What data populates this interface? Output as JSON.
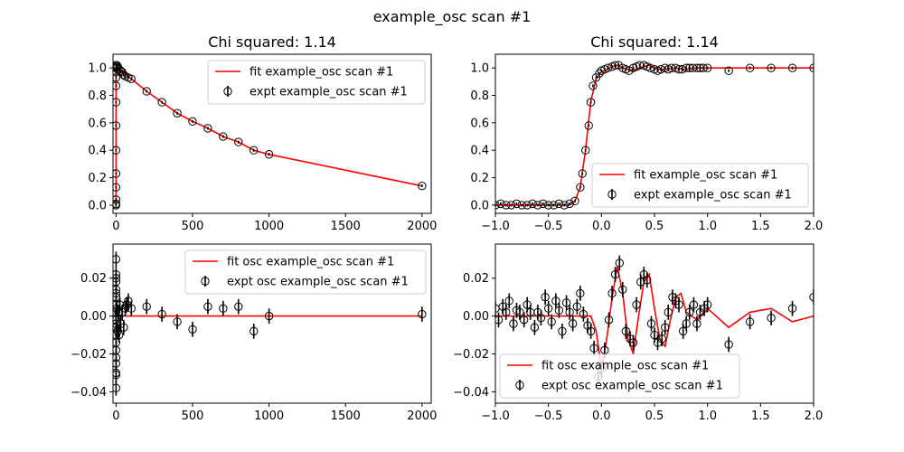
{
  "figure": {
    "title": "example_osc scan #1"
  },
  "colors": {
    "fit": "#ff0000",
    "expt": "#000000",
    "legend_border": "#cccccc",
    "axes": "#000000"
  },
  "chart_data": [
    {
      "type": "scatter",
      "title": "Chi squared:  1.14",
      "xlabel": "",
      "ylabel": "",
      "xlim": [
        -20,
        2060
      ],
      "ylim": [
        -0.06,
        1.1
      ],
      "xticks": [
        0,
        500,
        1000,
        1500,
        2000
      ],
      "xtick_labels": [
        "0",
        "500",
        "1000",
        "1500",
        "2000"
      ],
      "yticks": [
        0.0,
        0.2,
        0.4,
        0.6,
        0.8,
        1.0
      ],
      "ytick_labels": [
        "0.0",
        "0.2",
        "0.4",
        "0.6",
        "0.8",
        "1.0"
      ],
      "grid": false,
      "legend": {
        "placement": "top-right",
        "entries": [
          "fit example_osc scan #1",
          "expt example_osc scan #1"
        ]
      },
      "series": [
        {
          "name": "fit example_osc scan #1",
          "kind": "line",
          "x": [
            -1.0,
            -0.3,
            -0.2,
            -0.15,
            -0.1,
            -0.05,
            0.0,
            0.1,
            0.3,
            0.6,
            1.0,
            1.5,
            2.0,
            5,
            20,
            40,
            60,
            80,
            100,
            200,
            300,
            400,
            500,
            600,
            700,
            800,
            900,
            1000,
            2000
          ],
          "y": [
            0.0,
            0.0,
            0.13,
            0.4,
            0.76,
            0.95,
            1.0,
            1.02,
            1.0,
            1.01,
            1.0,
            1.0,
            1.0,
            1.0,
            0.99,
            0.98,
            0.96,
            0.94,
            0.92,
            0.83,
            0.75,
            0.67,
            0.61,
            0.56,
            0.5,
            0.46,
            0.4,
            0.37,
            0.14
          ]
        },
        {
          "name": "expt example_osc scan #1",
          "kind": "errorbar",
          "x": [
            -1.0,
            -0.6,
            -0.3,
            -0.25,
            -0.2,
            -0.18,
            -0.15,
            -0.12,
            -0.1,
            -0.08,
            -0.05,
            -0.03,
            0.0,
            0.1,
            0.3,
            0.5,
            1.0,
            1.4,
            2.0,
            5,
            10,
            20,
            30,
            40,
            50,
            60,
            80,
            100,
            200,
            300,
            400,
            500,
            600,
            700,
            800,
            900,
            1000,
            2000
          ],
          "y": [
            0.0,
            0.0,
            0.01,
            0.04,
            0.13,
            0.23,
            0.4,
            0.58,
            0.75,
            0.87,
            0.93,
            0.97,
            1.0,
            1.02,
            1.0,
            1.01,
            1.0,
            1.0,
            1.0,
            1.02,
            1.01,
            0.99,
            0.98,
            0.97,
            0.95,
            0.94,
            0.93,
            0.92,
            0.83,
            0.75,
            0.67,
            0.61,
            0.56,
            0.5,
            0.46,
            0.4,
            0.37,
            0.14
          ],
          "yerr": 0.01
        }
      ]
    },
    {
      "type": "scatter",
      "title": "Chi squared:  1.14",
      "xlabel": "",
      "ylabel": "",
      "xlim": [
        -1.0,
        2.0
      ],
      "ylim": [
        -0.06,
        1.1
      ],
      "xticks": [
        -1.0,
        -0.5,
        0.0,
        0.5,
        1.0,
        1.5,
        2.0
      ],
      "xtick_labels": [
        "−1.0",
        "−0.5",
        "0.0",
        "0.5",
        "1.0",
        "1.5",
        "2.0"
      ],
      "yticks": [
        0.0,
        0.2,
        0.4,
        0.6,
        0.8,
        1.0
      ],
      "ytick_labels": [
        "0.0",
        "0.2",
        "0.4",
        "0.6",
        "0.8",
        "1.0"
      ],
      "grid": false,
      "legend": {
        "placement": "bottom-right",
        "entries": [
          "fit example_osc scan #1",
          "expt example_osc scan #1"
        ]
      },
      "series": [
        {
          "name": "fit example_osc scan #1",
          "kind": "line",
          "x": [
            -1.0,
            -0.3,
            -0.25,
            -0.2,
            -0.15,
            -0.1,
            -0.05,
            0.0,
            0.05,
            0.1,
            0.15,
            0.2,
            0.25,
            0.3,
            0.35,
            0.4,
            0.45,
            0.5,
            0.55,
            0.6,
            0.7,
            0.8,
            0.9,
            1.0,
            1.5,
            2.0
          ],
          "y": [
            0.0,
            0.0,
            0.03,
            0.13,
            0.4,
            0.76,
            0.92,
            0.97,
            0.99,
            1.01,
            1.02,
            1.0,
            0.99,
            0.98,
            1.0,
            1.01,
            1.02,
            1.0,
            0.99,
            0.99,
            1.0,
            0.99,
            1.0,
            1.0,
            1.0,
            1.0
          ]
        },
        {
          "name": "expt example_osc scan #1",
          "kind": "errorbar",
          "x": [
            -1.0,
            -0.95,
            -0.9,
            -0.85,
            -0.8,
            -0.75,
            -0.7,
            -0.65,
            -0.6,
            -0.55,
            -0.5,
            -0.45,
            -0.4,
            -0.35,
            -0.3,
            -0.25,
            -0.2,
            -0.18,
            -0.15,
            -0.12,
            -0.1,
            -0.08,
            -0.05,
            -0.02,
            0.0,
            0.03,
            0.06,
            0.1,
            0.13,
            0.16,
            0.2,
            0.23,
            0.26,
            0.3,
            0.33,
            0.36,
            0.4,
            0.43,
            0.46,
            0.5,
            0.53,
            0.56,
            0.6,
            0.63,
            0.66,
            0.7,
            0.73,
            0.76,
            0.8,
            0.83,
            0.86,
            0.9,
            0.93,
            0.96,
            1.0,
            1.2,
            1.4,
            1.6,
            1.8,
            2.0
          ],
          "y": [
            0.0,
            0.01,
            0.0,
            0.0,
            0.01,
            0.0,
            0.0,
            0.01,
            0.0,
            0.01,
            0.0,
            0.0,
            0.01,
            0.0,
            0.01,
            0.03,
            0.13,
            0.23,
            0.4,
            0.58,
            0.75,
            0.87,
            0.93,
            0.96,
            0.98,
            0.99,
            1.0,
            1.01,
            1.02,
            1.02,
            1.0,
            0.99,
            0.98,
            1.0,
            1.01,
            1.02,
            1.02,
            1.01,
            1.0,
            0.99,
            0.98,
            0.99,
            1.0,
            0.99,
            1.0,
            1.0,
            0.99,
            0.99,
            1.0,
            1.0,
            1.0,
            1.0,
            1.0,
            1.0,
            1.0,
            0.98,
            1.0,
            1.0,
            1.0,
            1.0
          ],
          "yerr": 0.01
        }
      ]
    },
    {
      "type": "scatter",
      "title": "",
      "xlabel": "",
      "ylabel": "",
      "xlim": [
        -20,
        2060
      ],
      "ylim": [
        -0.046,
        0.038
      ],
      "xticks": [
        0,
        500,
        1000,
        1500,
        2000
      ],
      "xtick_labels": [
        "0",
        "500",
        "1000",
        "1500",
        "2000"
      ],
      "yticks": [
        -0.04,
        -0.02,
        0.0,
        0.02
      ],
      "ytick_labels": [
        "−0.04",
        "−0.02",
        "0.00",
        "0.02"
      ],
      "grid": false,
      "legend": {
        "placement": "top-right",
        "entries": [
          "fit osc example_osc scan #1",
          "expt osc example_osc scan #1"
        ]
      },
      "series": [
        {
          "name": "fit osc example_osc scan #1",
          "kind": "line",
          "x": [
            -1.0,
            0.0,
            0.1,
            0.2,
            0.3,
            0.4,
            0.5,
            0.6,
            1.0,
            2.0,
            100,
            2000
          ],
          "y": [
            0.0,
            -0.02,
            0.02,
            -0.01,
            -0.02,
            0.02,
            -0.015,
            0.01,
            0.0,
            0.0,
            0.0,
            0.0
          ]
        },
        {
          "name": "expt osc example_osc scan #1",
          "kind": "errorbar",
          "x": [
            0,
            0,
            0,
            0,
            0,
            0,
            0,
            0,
            0,
            0,
            0,
            0,
            0,
            0,
            0,
            0,
            0,
            0,
            0,
            0,
            5,
            10,
            15,
            20,
            25,
            30,
            40,
            50,
            60,
            70,
            80,
            100,
            200,
            300,
            400,
            500,
            600,
            700,
            800,
            900,
            1000,
            2000
          ],
          "y": [
            0.03,
            0.022,
            0.018,
            0.014,
            0.01,
            0.006,
            0.002,
            -0.002,
            -0.006,
            -0.01,
            -0.014,
            -0.018,
            -0.022,
            -0.025,
            -0.03,
            -0.031,
            -0.038,
            0.02,
            -0.004,
            0.012,
            0.004,
            -0.008,
            0.002,
            -0.01,
            0.006,
            -0.004,
            0.002,
            -0.006,
            0.004,
            0.006,
            0.008,
            0.004,
            0.005,
            0.001,
            -0.003,
            -0.007,
            0.005,
            0.004,
            0.005,
            -0.008,
            0.0,
            0.001
          ],
          "yerr": 0.004
        }
      ]
    },
    {
      "type": "scatter",
      "title": "",
      "xlabel": "",
      "ylabel": "",
      "xlim": [
        -1.0,
        2.0
      ],
      "ylim": [
        -0.046,
        0.038
      ],
      "xticks": [
        -1.0,
        -0.5,
        0.0,
        0.5,
        1.0,
        1.5,
        2.0
      ],
      "xtick_labels": [
        "−1.0",
        "−0.5",
        "0.0",
        "0.5",
        "1.0",
        "1.5",
        "2.0"
      ],
      "yticks": [
        -0.04,
        -0.02,
        0.0,
        0.02
      ],
      "ytick_labels": [
        "−0.04",
        "−0.02",
        "0.00",
        "0.02"
      ],
      "grid": false,
      "legend": {
        "placement": "bottom-left",
        "entries": [
          "fit osc example_osc scan #1",
          "expt osc example_osc scan #1"
        ]
      },
      "series": [
        {
          "name": "fit osc example_osc scan #1",
          "kind": "line",
          "x": [
            -1.0,
            -0.9,
            -0.8,
            -0.7,
            -0.6,
            -0.5,
            -0.4,
            -0.3,
            -0.2,
            -0.1,
            -0.05,
            0.0,
            0.05,
            0.1,
            0.15,
            0.2,
            0.25,
            0.3,
            0.35,
            0.4,
            0.45,
            0.5,
            0.55,
            0.6,
            0.65,
            0.7,
            0.75,
            0.8,
            0.9,
            1.0,
            1.2,
            1.4,
            1.6,
            1.8,
            2.0
          ],
          "y": [
            0.0,
            0.0,
            0.0,
            0.0,
            0.0,
            0.0,
            0.0,
            0.0,
            0.0,
            0.0,
            -0.008,
            -0.028,
            -0.012,
            0.01,
            0.026,
            0.012,
            -0.012,
            -0.02,
            0.0,
            0.018,
            0.022,
            0.004,
            -0.012,
            -0.016,
            -0.002,
            0.01,
            0.012,
            0.002,
            -0.002,
            0.004,
            -0.006,
            0.002,
            0.004,
            -0.003,
            0.0
          ]
        },
        {
          "name": "expt osc example_osc scan #1",
          "kind": "errorbar",
          "x": [
            -1.0,
            -0.97,
            -0.93,
            -0.9,
            -0.87,
            -0.83,
            -0.8,
            -0.77,
            -0.73,
            -0.7,
            -0.67,
            -0.63,
            -0.6,
            -0.57,
            -0.53,
            -0.5,
            -0.47,
            -0.43,
            -0.4,
            -0.37,
            -0.33,
            -0.3,
            -0.27,
            -0.23,
            -0.2,
            -0.17,
            -0.13,
            -0.1,
            -0.07,
            -0.03,
            0.0,
            0.03,
            0.07,
            0.1,
            0.13,
            0.17,
            0.2,
            0.23,
            0.27,
            0.3,
            0.33,
            0.37,
            0.4,
            0.43,
            0.47,
            0.5,
            0.53,
            0.57,
            0.6,
            0.63,
            0.67,
            0.7,
            0.73,
            0.77,
            0.8,
            0.83,
            0.87,
            0.9,
            0.93,
            0.97,
            1.0,
            1.2,
            1.4,
            1.6,
            1.8,
            2.0
          ],
          "y": [
            0.004,
            -0.002,
            0.005,
            0.002,
            0.008,
            -0.004,
            0.003,
            0.002,
            -0.002,
            0.006,
            0.002,
            -0.006,
            0.002,
            -0.001,
            0.01,
            0.004,
            -0.003,
            0.008,
            0.003,
            -0.008,
            0.007,
            0.002,
            -0.004,
            0.005,
            0.012,
            0.001,
            -0.005,
            -0.008,
            -0.017,
            -0.032,
            -0.028,
            -0.018,
            -0.002,
            0.012,
            0.022,
            0.028,
            0.014,
            -0.008,
            -0.012,
            -0.014,
            0.006,
            0.018,
            0.022,
            0.019,
            -0.004,
            -0.01,
            -0.014,
            -0.012,
            -0.006,
            0.002,
            0.01,
            0.008,
            0.006,
            -0.008,
            -0.004,
            0.002,
            0.006,
            -0.004,
            0.002,
            0.004,
            0.006,
            -0.015,
            -0.003,
            -0.001,
            0.004,
            0.01
          ],
          "yerr": 0.004
        }
      ]
    }
  ]
}
